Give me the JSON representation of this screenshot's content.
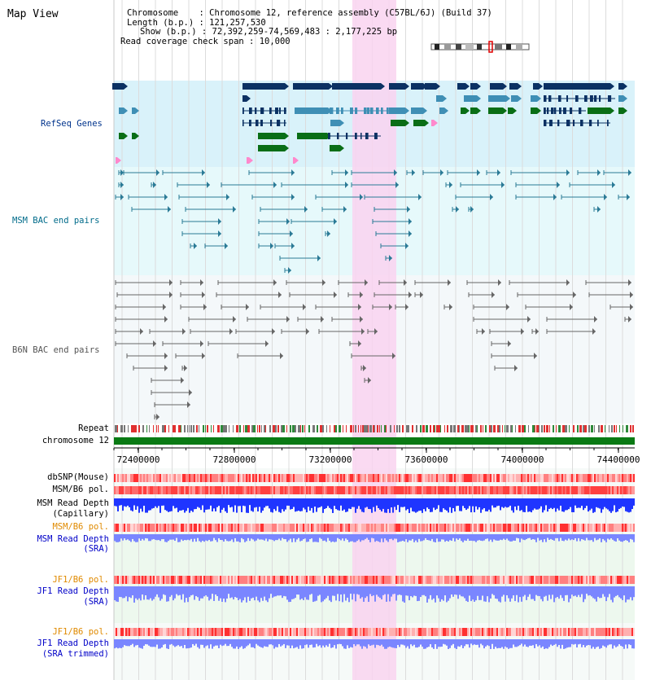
{
  "view_title": "Map View",
  "info": {
    "chromosome_key": "Chromosome",
    "chromosome_val": "Chromosome 12, reference assembly (C57BL/6J) (Build 37)",
    "length_key": "Length (b.p.)",
    "length_val": "121,257,530",
    "show_key": "Show (b.p.)",
    "show_val": "72,392,259-74,569,483 : 2,177,225 bp",
    "span_key": "Read coverage check span",
    "span_val": "10,000"
  },
  "tracks": {
    "refseq": "RefSeq Genes",
    "msm_bac": "MSM BAC end pairs",
    "b6n_bac": "B6N BAC end pairs",
    "repeat": "Repeat",
    "chromosome": "chromosome 12",
    "dbsnp": "dbSNP(Mouse)",
    "msm_pol1": "MSM/B6 pol.",
    "msm_depth_cap_1": "MSM Read Depth",
    "msm_depth_cap_2": "(Capillary)",
    "msm_pol2": "MSM/B6 pol.",
    "msm_depth_sra_1": "MSM Read Depth",
    "msm_depth_sra_2": "(SRA)",
    "jf1_pol1": "JF1/B6 pol.",
    "jf1_depth_sra_1": "JF1 Read Depth",
    "jf1_depth_sra_2": "(SRA)",
    "jf1_pol2": "JF1/B6 pol.",
    "jf1_depth_trim_1": "JF1 Read Depth",
    "jf1_depth_trim_2": "(SRA trimmed)"
  },
  "axis": {
    "ticks": [
      "72400000",
      "72800000",
      "73200000",
      "73600000",
      "74000000",
      "74400000"
    ]
  },
  "colors": {
    "refseq_bg": "#d9f2fa",
    "msm_bg": "#e6f9fb",
    "b6n_bg": "#f1f6f8",
    "highlight": "#f9d3f0",
    "gene_navy": "#0b3163",
    "gene_teal": "#3f8fb5",
    "gene_green": "#0a6e16",
    "bac_teal": "#2a7a96",
    "bac_gray": "#666666",
    "chrom_green": "#0a7a14",
    "depth_blue": "#1f35ff",
    "depth_light": "#7a86ff",
    "label_navy": "#00338c",
    "label_teal": "#006b8a",
    "label_orange": "#e08a00",
    "label_blue": "#0000c8"
  }
}
